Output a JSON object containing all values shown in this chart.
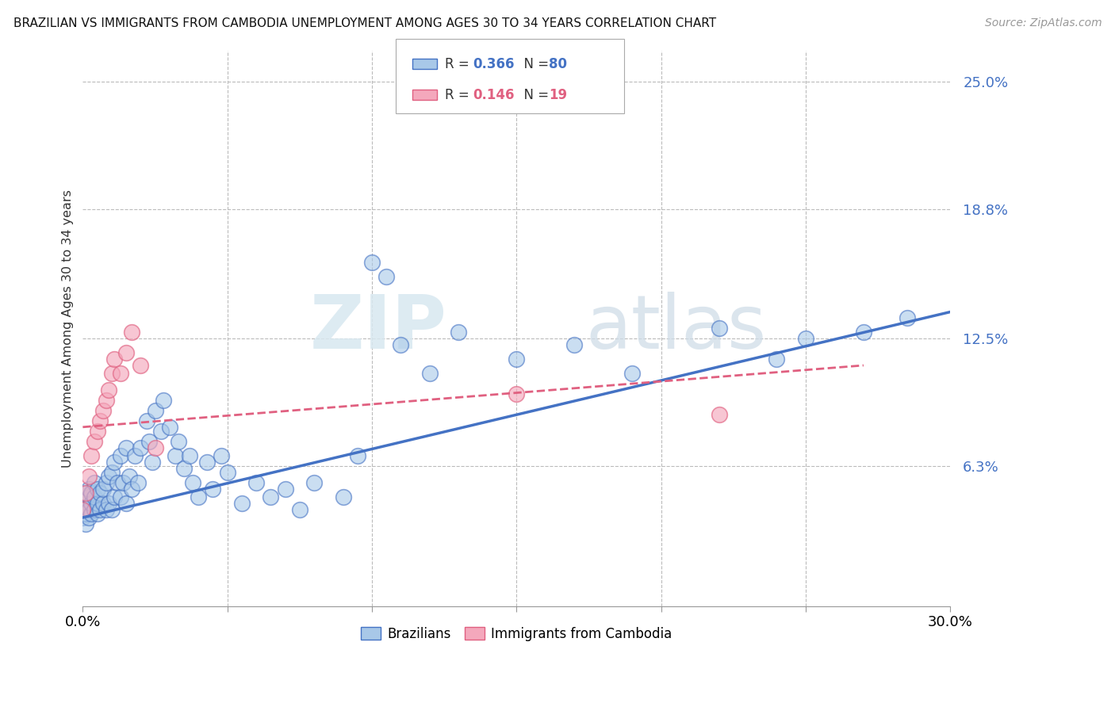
{
  "title": "BRAZILIAN VS IMMIGRANTS FROM CAMBODIA UNEMPLOYMENT AMONG AGES 30 TO 34 YEARS CORRELATION CHART",
  "source": "Source: ZipAtlas.com",
  "ylabel": "Unemployment Among Ages 30 to 34 years",
  "xlim": [
    0.0,
    0.3
  ],
  "ylim": [
    -0.005,
    0.265
  ],
  "ytick_labels": [
    "6.3%",
    "12.5%",
    "18.8%",
    "25.0%"
  ],
  "ytick_values": [
    0.063,
    0.125,
    0.188,
    0.25
  ],
  "bottom_legend_labels": [
    "Brazilians",
    "Immigrants from Cambodia"
  ],
  "blue_color": "#a8c8e8",
  "pink_color": "#f4a8bc",
  "blue_line_color": "#4472c4",
  "pink_line_color": "#e06080",
  "watermark_zip": "ZIP",
  "watermark_atlas": "atlas",
  "brazil_x": [
    0.0,
    0.0,
    0.001,
    0.001,
    0.001,
    0.001,
    0.002,
    0.002,
    0.002,
    0.002,
    0.003,
    0.003,
    0.003,
    0.004,
    0.004,
    0.004,
    0.005,
    0.005,
    0.005,
    0.006,
    0.006,
    0.007,
    0.007,
    0.008,
    0.008,
    0.009,
    0.009,
    0.01,
    0.01,
    0.011,
    0.011,
    0.012,
    0.013,
    0.013,
    0.014,
    0.015,
    0.015,
    0.016,
    0.017,
    0.018,
    0.019,
    0.02,
    0.022,
    0.023,
    0.024,
    0.025,
    0.027,
    0.028,
    0.03,
    0.032,
    0.033,
    0.035,
    0.037,
    0.038,
    0.04,
    0.043,
    0.045,
    0.048,
    0.05,
    0.055,
    0.06,
    0.065,
    0.07,
    0.075,
    0.08,
    0.09,
    0.095,
    0.1,
    0.105,
    0.11,
    0.12,
    0.13,
    0.15,
    0.17,
    0.19,
    0.22,
    0.24,
    0.25,
    0.27,
    0.285
  ],
  "brazil_y": [
    0.038,
    0.042,
    0.035,
    0.04,
    0.043,
    0.05,
    0.038,
    0.042,
    0.048,
    0.052,
    0.04,
    0.045,
    0.05,
    0.042,
    0.048,
    0.055,
    0.04,
    0.045,
    0.052,
    0.042,
    0.05,
    0.045,
    0.052,
    0.042,
    0.055,
    0.045,
    0.058,
    0.042,
    0.06,
    0.048,
    0.065,
    0.055,
    0.048,
    0.068,
    0.055,
    0.045,
    0.072,
    0.058,
    0.052,
    0.068,
    0.055,
    0.072,
    0.085,
    0.075,
    0.065,
    0.09,
    0.08,
    0.095,
    0.082,
    0.068,
    0.075,
    0.062,
    0.068,
    0.055,
    0.048,
    0.065,
    0.052,
    0.068,
    0.06,
    0.045,
    0.055,
    0.048,
    0.052,
    0.042,
    0.055,
    0.048,
    0.068,
    0.162,
    0.155,
    0.122,
    0.108,
    0.128,
    0.115,
    0.122,
    0.108,
    0.13,
    0.115,
    0.125,
    0.128,
    0.135
  ],
  "cambodia_x": [
    0.0,
    0.001,
    0.002,
    0.003,
    0.004,
    0.005,
    0.006,
    0.007,
    0.008,
    0.009,
    0.01,
    0.011,
    0.013,
    0.015,
    0.017,
    0.02,
    0.025,
    0.15,
    0.22
  ],
  "cambodia_y": [
    0.042,
    0.05,
    0.058,
    0.068,
    0.075,
    0.08,
    0.085,
    0.09,
    0.095,
    0.1,
    0.108,
    0.115,
    0.108,
    0.118,
    0.128,
    0.112,
    0.072,
    0.098,
    0.088
  ],
  "brazil_trend_x": [
    0.0,
    0.3
  ],
  "brazil_trend_y": [
    0.038,
    0.138
  ],
  "cambodia_trend_x": [
    0.0,
    0.27
  ],
  "cambodia_trend_y": [
    0.082,
    0.112
  ]
}
